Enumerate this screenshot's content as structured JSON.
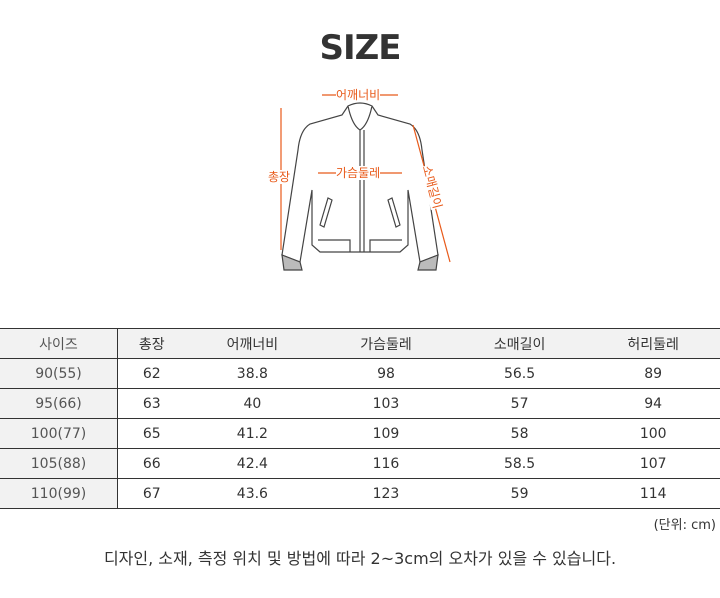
{
  "title": "SIZE",
  "diagram": {
    "labels": {
      "shoulder": "어깨너비",
      "chest": "가슴둘레",
      "length": "총장",
      "sleeve": "소매길이"
    },
    "accent_color": "#e85a1a"
  },
  "table": {
    "headers": [
      "사이즈",
      "총장",
      "어깨너비",
      "가슴둘레",
      "소매길이",
      "허리둘레"
    ],
    "rows": [
      [
        "90(55)",
        "62",
        "38.8",
        "98",
        "56.5",
        "89"
      ],
      [
        "95(66)",
        "63",
        "40",
        "103",
        "57",
        "94"
      ],
      [
        "100(77)",
        "65",
        "41.2",
        "109",
        "58",
        "100"
      ],
      [
        "105(88)",
        "66",
        "42.4",
        "116",
        "58.5",
        "107"
      ],
      [
        "110(99)",
        "67",
        "43.6",
        "123",
        "59",
        "114"
      ]
    ]
  },
  "unit": "(단위: cm)",
  "note": "디자인, 소재, 측정 위치 및 방법에 따라 2~3cm의 오차가 있을 수 있습니다."
}
